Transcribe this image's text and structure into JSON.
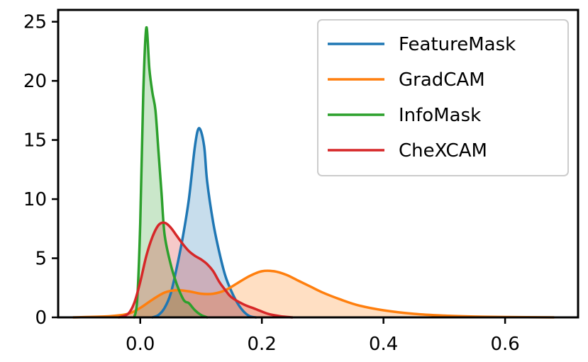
{
  "chart_data": {
    "type": "area",
    "title": "",
    "xlabel": "",
    "ylabel": "",
    "xlim": [
      -0.135,
      0.72
    ],
    "ylim": [
      0,
      26.0
    ],
    "grid": false,
    "legend_position": "top-right",
    "x_ticks": [
      {
        "value": 0.0,
        "label": "0.0"
      },
      {
        "value": 0.2,
        "label": "0.2"
      },
      {
        "value": 0.4,
        "label": "0.4"
      },
      {
        "value": 0.6,
        "label": "0.6"
      }
    ],
    "y_ticks": [
      {
        "value": 0,
        "label": "0"
      },
      {
        "value": 5,
        "label": "5"
      },
      {
        "value": 10,
        "label": "10"
      },
      {
        "value": 15,
        "label": "15"
      },
      {
        "value": 20,
        "label": "20"
      },
      {
        "value": 25,
        "label": "25"
      }
    ],
    "series": [
      {
        "name": "FeatureMask",
        "color": "#1f77b4",
        "points": [
          [
            0.02,
            0
          ],
          [
            0.03,
            0.2
          ],
          [
            0.04,
            0.8
          ],
          [
            0.05,
            2.0
          ],
          [
            0.06,
            4.2
          ],
          [
            0.07,
            6.8
          ],
          [
            0.08,
            10.0
          ],
          [
            0.09,
            14.5
          ],
          [
            0.097,
            16.0
          ],
          [
            0.105,
            14.5
          ],
          [
            0.11,
            11.5
          ],
          [
            0.12,
            8.0
          ],
          [
            0.13,
            5.5
          ],
          [
            0.14,
            3.5
          ],
          [
            0.15,
            2.2
          ],
          [
            0.16,
            1.2
          ],
          [
            0.17,
            0.5
          ],
          [
            0.18,
            0.1
          ],
          [
            0.19,
            0
          ]
        ]
      },
      {
        "name": "GradCAM",
        "color": "#ff7f0e",
        "points": [
          [
            -0.11,
            0
          ],
          [
            -0.05,
            0.1
          ],
          [
            -0.02,
            0.3
          ],
          [
            0.0,
            0.8
          ],
          [
            0.02,
            1.5
          ],
          [
            0.04,
            2.1
          ],
          [
            0.06,
            2.3
          ],
          [
            0.08,
            2.2
          ],
          [
            0.1,
            2.0
          ],
          [
            0.12,
            2.0
          ],
          [
            0.14,
            2.3
          ],
          [
            0.16,
            2.9
          ],
          [
            0.18,
            3.5
          ],
          [
            0.2,
            3.9
          ],
          [
            0.22,
            3.9
          ],
          [
            0.24,
            3.6
          ],
          [
            0.26,
            3.1
          ],
          [
            0.28,
            2.6
          ],
          [
            0.3,
            2.1
          ],
          [
            0.33,
            1.5
          ],
          [
            0.36,
            1.0
          ],
          [
            0.4,
            0.6
          ],
          [
            0.45,
            0.3
          ],
          [
            0.5,
            0.15
          ],
          [
            0.55,
            0.07
          ],
          [
            0.6,
            0.03
          ],
          [
            0.68,
            0.0
          ]
        ]
      },
      {
        "name": "InfoMask",
        "color": "#2ca02c",
        "points": [
          [
            -0.01,
            0
          ],
          [
            -0.005,
            1.5
          ],
          [
            0.0,
            8.0
          ],
          [
            0.005,
            19.0
          ],
          [
            0.01,
            24.5
          ],
          [
            0.015,
            21.0
          ],
          [
            0.02,
            19.0
          ],
          [
            0.025,
            17.5
          ],
          [
            0.03,
            14.0
          ],
          [
            0.035,
            10.5
          ],
          [
            0.04,
            7.0
          ],
          [
            0.05,
            4.5
          ],
          [
            0.06,
            2.8
          ],
          [
            0.07,
            1.6
          ],
          [
            0.075,
            1.3
          ],
          [
            0.08,
            1.2
          ],
          [
            0.09,
            0.6
          ],
          [
            0.1,
            0.2
          ],
          [
            0.11,
            0
          ]
        ]
      },
      {
        "name": "CheXCAM",
        "color": "#d62728",
        "points": [
          [
            -0.035,
            0
          ],
          [
            -0.02,
            0.3
          ],
          [
            -0.01,
            1.2
          ],
          [
            0.0,
            3.0
          ],
          [
            0.01,
            5.2
          ],
          [
            0.02,
            6.8
          ],
          [
            0.03,
            7.8
          ],
          [
            0.04,
            8.0
          ],
          [
            0.05,
            7.6
          ],
          [
            0.06,
            6.9
          ],
          [
            0.07,
            6.2
          ],
          [
            0.08,
            5.6
          ],
          [
            0.09,
            5.2
          ],
          [
            0.1,
            4.9
          ],
          [
            0.11,
            4.5
          ],
          [
            0.12,
            3.9
          ],
          [
            0.13,
            3.0
          ],
          [
            0.14,
            2.3
          ],
          [
            0.15,
            1.7
          ],
          [
            0.17,
            1.1
          ],
          [
            0.19,
            0.7
          ],
          [
            0.21,
            0.3
          ],
          [
            0.23,
            0.1
          ],
          [
            0.25,
            0
          ]
        ]
      }
    ]
  }
}
